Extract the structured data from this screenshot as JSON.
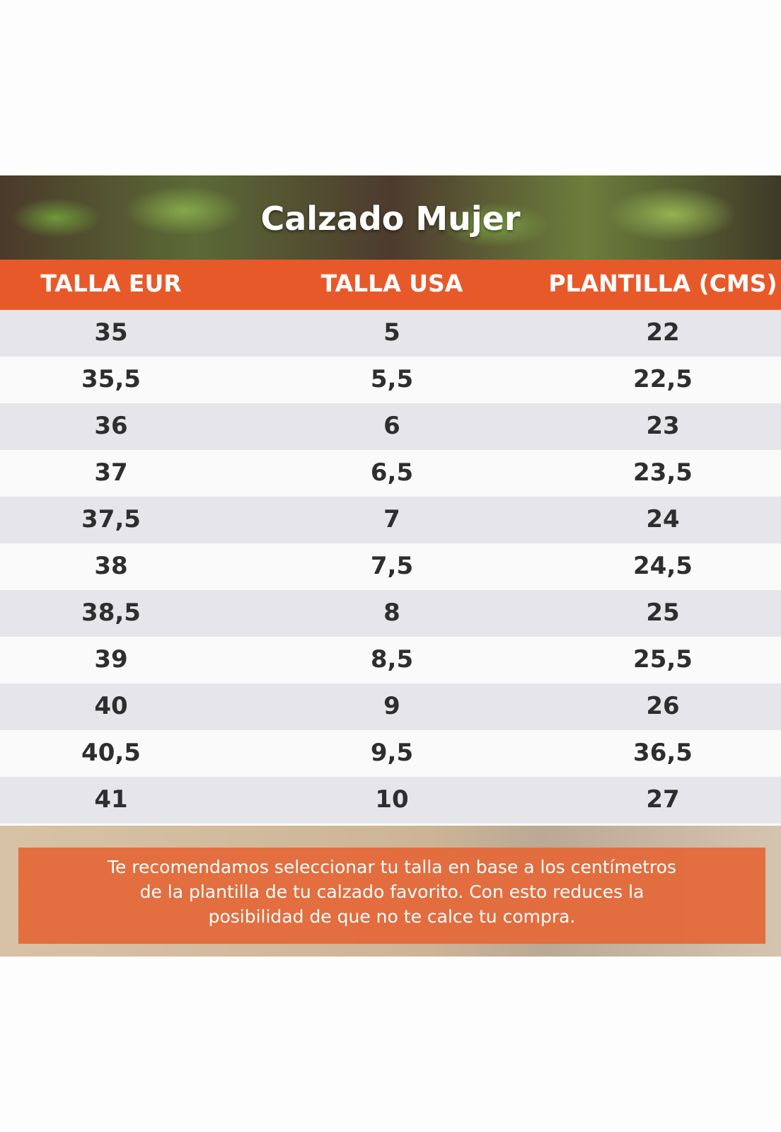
{
  "header": {
    "title": "Calzado Mujer"
  },
  "table": {
    "columns": [
      "TALLA EUR",
      "TALLA USA",
      "PLANTILLA (CMS)"
    ],
    "rows": [
      [
        "35",
        "5",
        "22"
      ],
      [
        "35,5",
        "5,5",
        "22,5"
      ],
      [
        "36",
        "6",
        "23"
      ],
      [
        "37",
        "6,5",
        "23,5"
      ],
      [
        "37,5",
        "7",
        "24"
      ],
      [
        "38",
        "7,5",
        "24,5"
      ],
      [
        "38,5",
        "8",
        "25"
      ],
      [
        "39",
        "8,5",
        "25,5"
      ],
      [
        "40",
        "9",
        "26"
      ],
      [
        "40,5",
        "9,5",
        "36,5"
      ],
      [
        "41",
        "10",
        "27"
      ]
    ]
  },
  "footer": {
    "lines": [
      "Te recomendamos seleccionar tu talla en base a los centímetros",
      "de la plantilla de tu calzado favorito. Con esto reduces la",
      "posibilidad de que no te calce tu compra."
    ]
  }
}
